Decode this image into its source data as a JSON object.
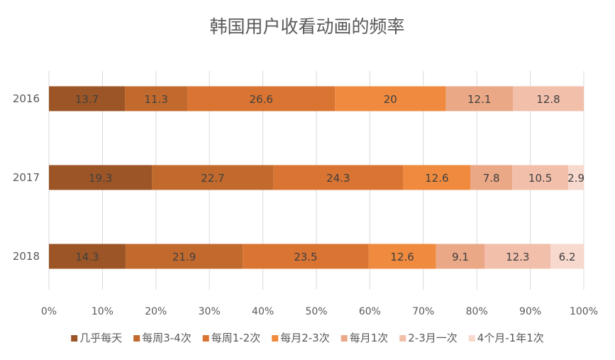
{
  "chart_data": {
    "type": "bar",
    "orientation": "horizontal",
    "stacked": "percent",
    "title": "韩国用户收看动画的频率",
    "categories": [
      "2016",
      "2017",
      "2018"
    ],
    "series": [
      {
        "name": "几乎每天",
        "values": [
          13.7,
          19.3,
          14.3
        ],
        "color": "#9c5526"
      },
      {
        "name": "每周3-4次",
        "values": [
          11.3,
          22.7,
          21.9
        ],
        "color": "#c26a2d"
      },
      {
        "name": "每周1-2次",
        "values": [
          26.6,
          24.3,
          23.5
        ],
        "color": "#d97432"
      },
      {
        "name": "每月2-3次",
        "values": [
          20,
          12.6,
          12.6
        ],
        "color": "#ef8a3e"
      },
      {
        "name": "每月1次",
        "values": [
          12.1,
          7.8,
          9.1
        ],
        "color": "#eaa886"
      },
      {
        "name": "2-3月一次",
        "values": [
          12.8,
          10.5,
          12.3
        ],
        "color": "#f2bfab"
      },
      {
        "name": "4个月-1年1次",
        "values": [
          null,
          2.9,
          6.2
        ],
        "color": "#f8d9cd"
      }
    ],
    "xlim": [
      0,
      100
    ],
    "xticks": [
      "0%",
      "10%",
      "20%",
      "30%",
      "40%",
      "50%",
      "60%",
      "70%",
      "80%",
      "90%",
      "100%"
    ],
    "grid": true,
    "legend": "bottom"
  }
}
